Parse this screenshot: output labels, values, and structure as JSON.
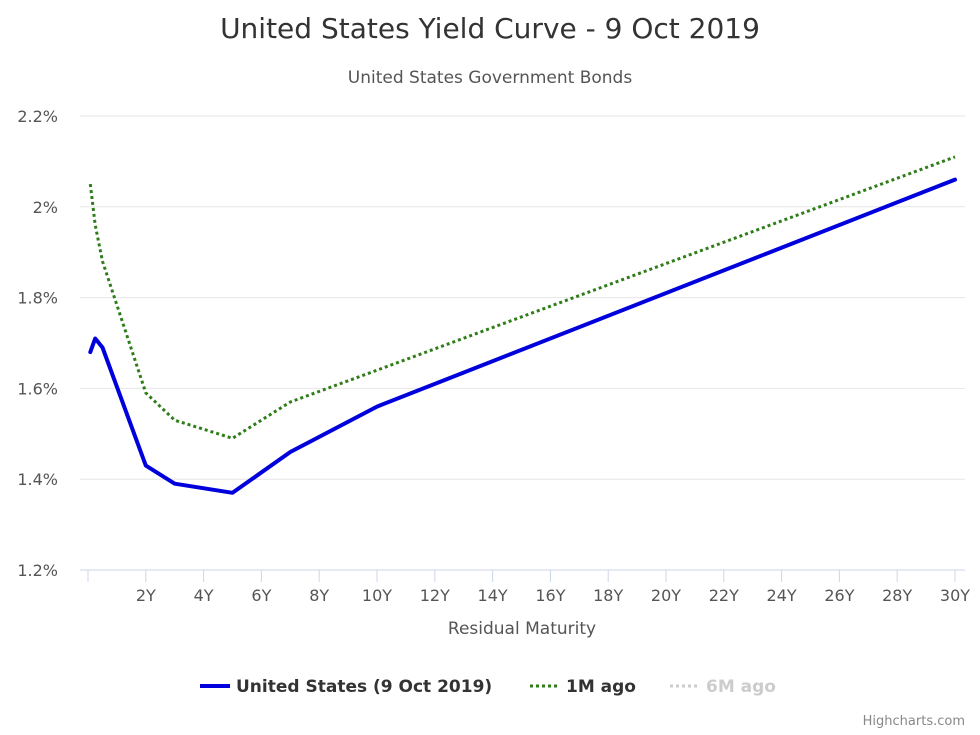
{
  "chart_data": {
    "type": "line",
    "title": "United States Yield Curve - 9 Oct 2019",
    "subtitle": "United States Government Bonds",
    "xlabel": "Residual Maturity",
    "ylabel": "",
    "xlim": [
      0,
      30
    ],
    "ylim": [
      1.2,
      2.2
    ],
    "x_ticks": [
      {
        "v": 2,
        "label": "2Y"
      },
      {
        "v": 4,
        "label": "4Y"
      },
      {
        "v": 6,
        "label": "6Y"
      },
      {
        "v": 8,
        "label": "8Y"
      },
      {
        "v": 10,
        "label": "10Y"
      },
      {
        "v": 12,
        "label": "12Y"
      },
      {
        "v": 14,
        "label": "14Y"
      },
      {
        "v": 16,
        "label": "16Y"
      },
      {
        "v": 18,
        "label": "18Y"
      },
      {
        "v": 20,
        "label": "20Y"
      },
      {
        "v": 22,
        "label": "22Y"
      },
      {
        "v": 24,
        "label": "24Y"
      },
      {
        "v": 26,
        "label": "26Y"
      },
      {
        "v": 28,
        "label": "28Y"
      },
      {
        "v": 30,
        "label": "30Y"
      }
    ],
    "y_ticks": [
      {
        "v": 1.2,
        "label": "1.2%"
      },
      {
        "v": 1.4,
        "label": "1.4%"
      },
      {
        "v": 1.6,
        "label": "1.6%"
      },
      {
        "v": 1.8,
        "label": "1.8%"
      },
      {
        "v": 2.0,
        "label": "2%"
      },
      {
        "v": 2.2,
        "label": "2.2%"
      }
    ],
    "grid": true,
    "legend_position": "bottom-center",
    "series": [
      {
        "name": "United States (9 Oct 2019)",
        "color": "#0000dd",
        "style": "solid",
        "visible": true,
        "points": [
          [
            0.08,
            1.68
          ],
          [
            0.25,
            1.71
          ],
          [
            0.5,
            1.69
          ],
          [
            2,
            1.43
          ],
          [
            3,
            1.39
          ],
          [
            5,
            1.37
          ],
          [
            7,
            1.46
          ],
          [
            10,
            1.56
          ],
          [
            30,
            2.06
          ]
        ]
      },
      {
        "name": "1M ago",
        "color": "#2e7d18",
        "style": "dotted",
        "visible": true,
        "points": [
          [
            0.08,
            2.05
          ],
          [
            0.25,
            1.96
          ],
          [
            0.5,
            1.88
          ],
          [
            2,
            1.59
          ],
          [
            3,
            1.53
          ],
          [
            5,
            1.49
          ],
          [
            7,
            1.57
          ],
          [
            10,
            1.64
          ],
          [
            30,
            2.11
          ]
        ]
      },
      {
        "name": "6M ago",
        "color": "#cccccc",
        "style": "dotted",
        "visible": false,
        "points": []
      }
    ]
  },
  "credits": "Highcharts.com"
}
